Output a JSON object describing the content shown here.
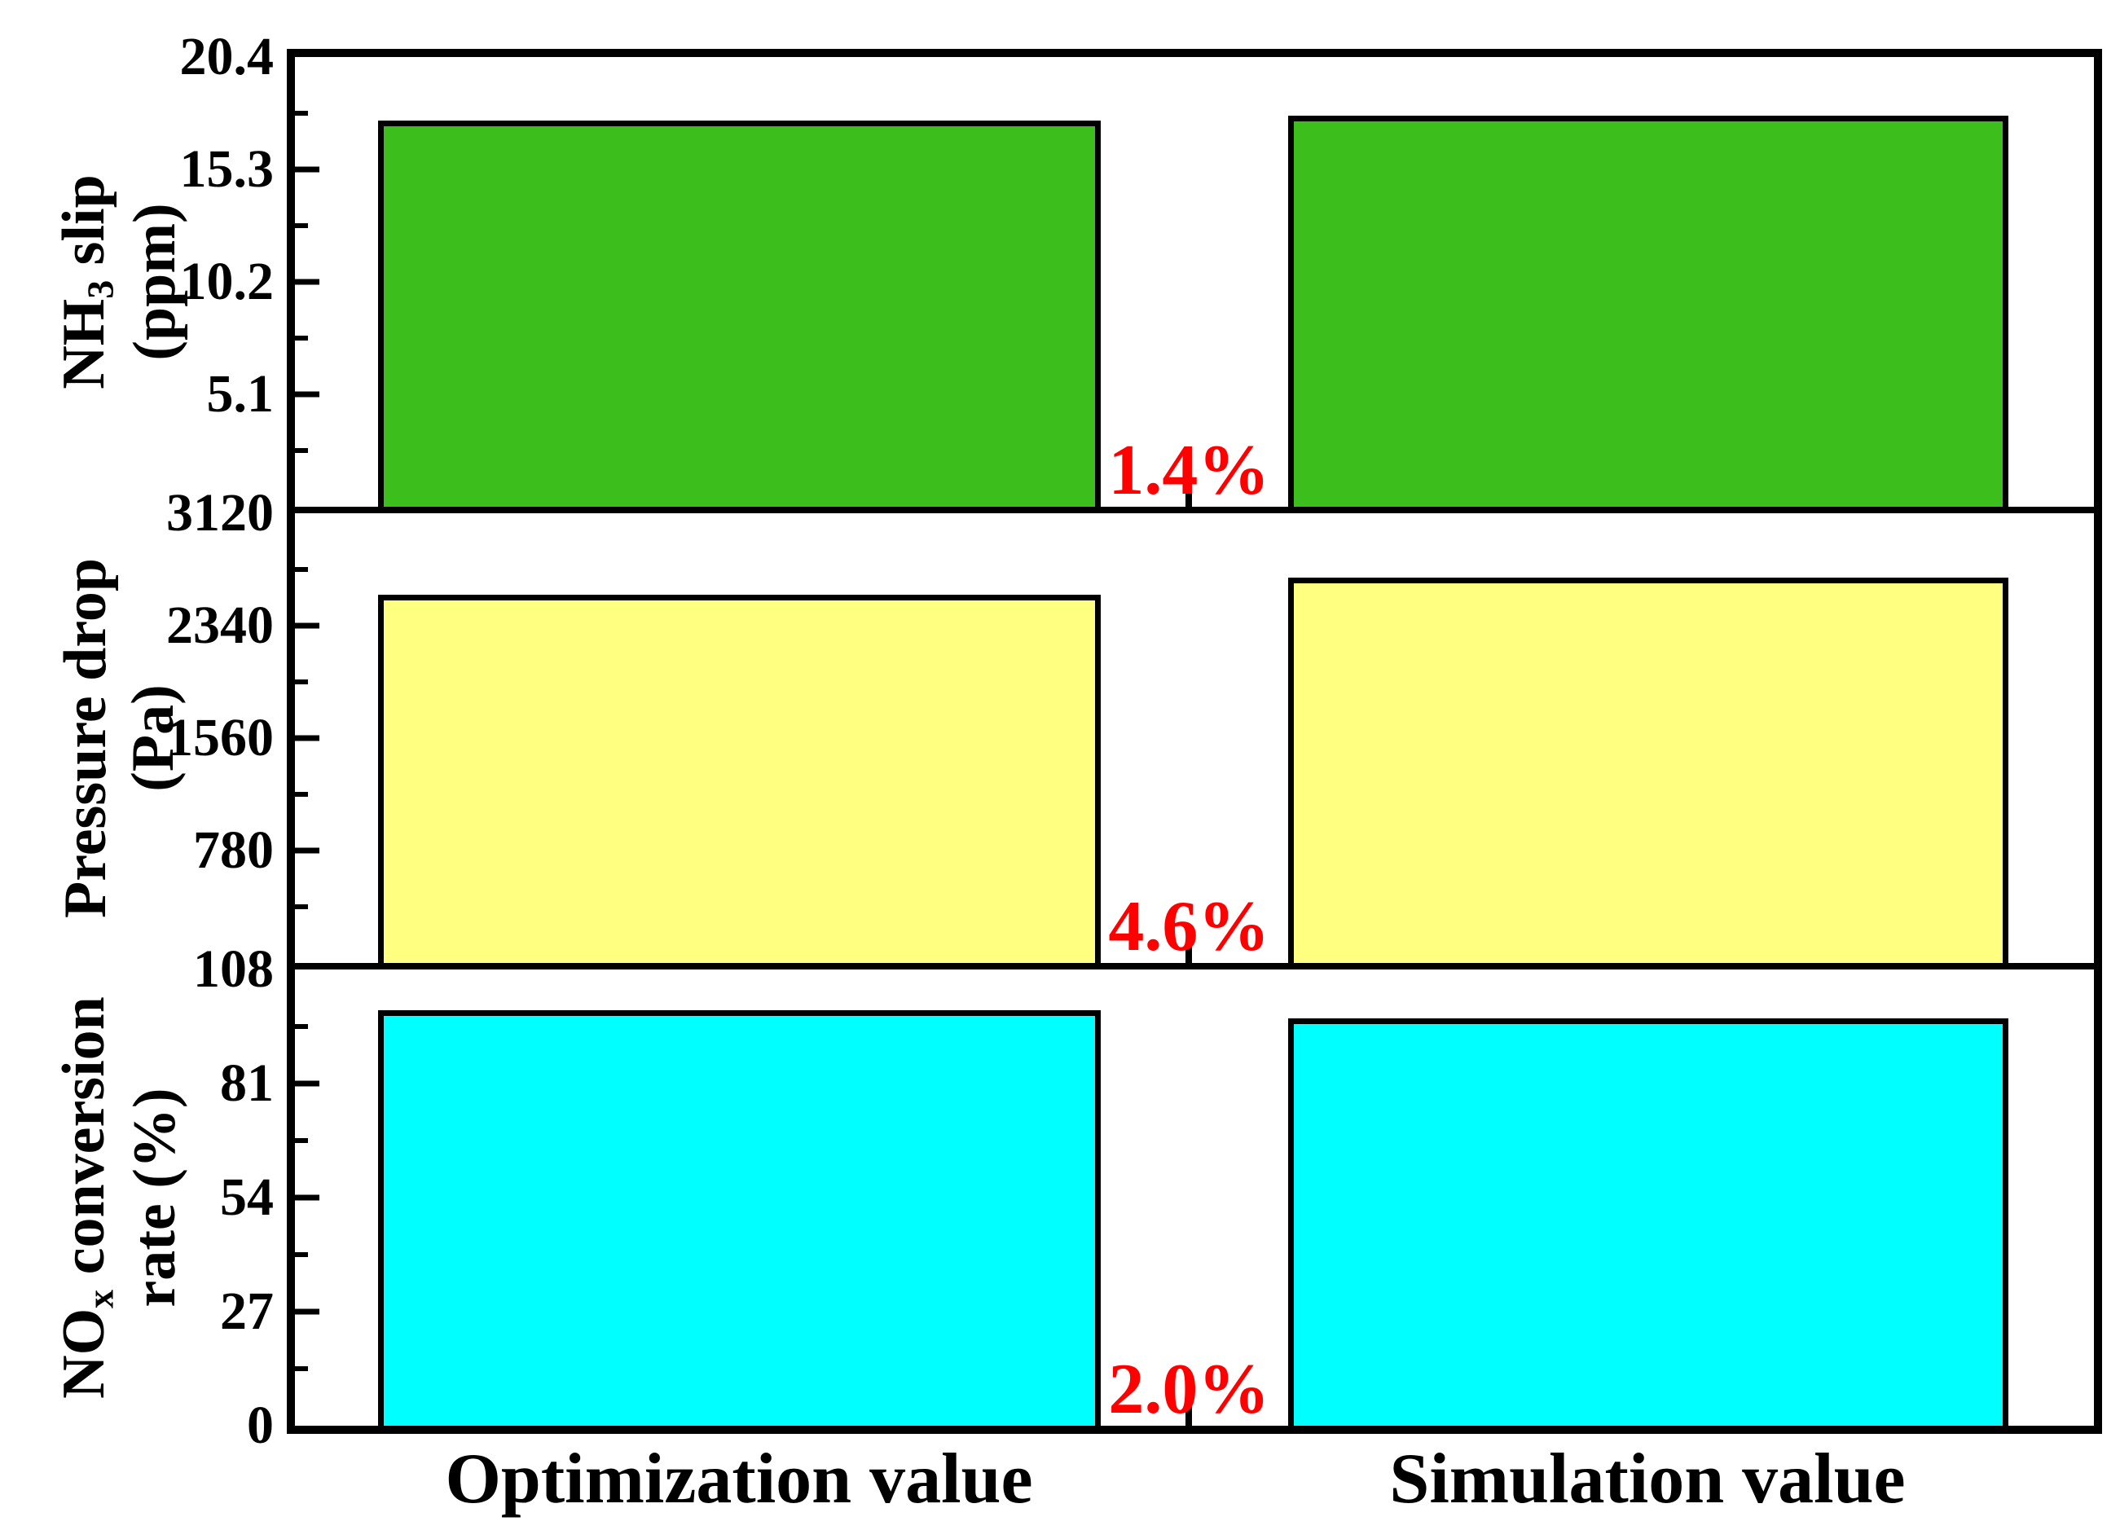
{
  "chart_data": {
    "type": "bar",
    "title": "",
    "categories": [
      "Optimization value",
      "Simulation value"
    ],
    "legend": "none",
    "grid": "off",
    "frame_color": "#000000",
    "background_color": "#ffffff",
    "diff_label_color": "#ff0000",
    "panels": [
      {
        "id": "nh3-slip",
        "ylabel_lines": [
          [
            {
              "t": "NH"
            },
            {
              "t": "3",
              "sub": true
            },
            {
              "t": " slip"
            }
          ],
          [
            {
              "t": "(ppm)"
            }
          ]
        ],
        "ylabel_text": "NH3 slip (ppm)",
        "ymax": 20.4,
        "ymin": 0,
        "ytick_labels": [
          "20.4",
          "15.3",
          "10.2",
          "5.1"
        ],
        "values": [
          17.5,
          17.75
        ],
        "diff_label": "1.4%",
        "bar_color": "#3cbe1c"
      },
      {
        "id": "pressure-drop",
        "ylabel_lines": [
          [
            {
              "t": "Pressure drop"
            }
          ],
          [
            {
              "t": "(Pa)"
            }
          ]
        ],
        "ylabel_text": "Pressure drop (Pa)",
        "ymax": 3120,
        "ymin": 0,
        "ytick_labels": [
          "3120",
          "2340",
          "1560",
          "780"
        ],
        "values": [
          2555,
          2672
        ],
        "diff_label": "4.6%",
        "bar_color": "#ffff80"
      },
      {
        "id": "nox-conversion",
        "ylabel_lines": [
          [
            {
              "t": "NO"
            },
            {
              "t": "x",
              "sub": true
            },
            {
              "t": " conversion"
            }
          ],
          [
            {
              "t": "rate (%)"
            }
          ]
        ],
        "ylabel_text": "NOx conversion rate (%)",
        "ymax": 108,
        "ymin": 0,
        "ytick_labels": [
          "108",
          "81",
          "54",
          "27",
          "0"
        ],
        "values": [
          98.4,
          96.5
        ],
        "diff_label": "2.0%",
        "bar_color": "#00ffff"
      }
    ]
  }
}
